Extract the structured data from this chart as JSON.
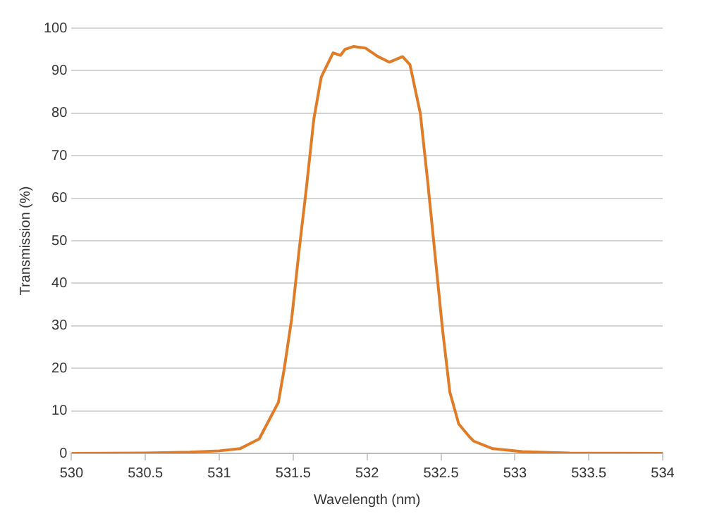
{
  "chart_data": {
    "type": "line",
    "xlabel": "Wavelength (nm)",
    "ylabel": "Transmission (%)",
    "xlim": [
      530,
      534
    ],
    "xticks": [
      530,
      530.5,
      531,
      531.5,
      532,
      532.5,
      533,
      533.5,
      534
    ],
    "ylim": [
      0,
      100
    ],
    "yticks": [
      0,
      10,
      20,
      30,
      40,
      50,
      60,
      70,
      80,
      90,
      100
    ],
    "grid": "y",
    "legend": false,
    "marker": "none",
    "line_style": "solid",
    "series": [
      {
        "color": "#e07b27",
        "x": [
          530,
          530.5,
          530.8,
          531,
          531.14,
          531.27,
          531.4,
          531.44,
          531.49,
          531.54,
          531.59,
          531.64,
          531.69,
          531.77,
          531.82,
          531.85,
          531.91,
          531.99,
          532.07,
          532.15,
          532.24,
          532.29,
          532.36,
          532.41,
          532.46,
          532.51,
          532.56,
          532.62,
          532.69,
          532.72,
          532.85,
          533.05,
          533.37,
          534
        ],
        "values": [
          0,
          0.1,
          0.3,
          0.6,
          1.1,
          3.4,
          12,
          20,
          31.7,
          47.7,
          62.6,
          78.7,
          88.5,
          94.2,
          93.6,
          95,
          95.7,
          95.3,
          93.4,
          92,
          93.3,
          91.4,
          80,
          64,
          46.6,
          29.3,
          14.4,
          6.9,
          4,
          2.9,
          1.1,
          0.4,
          0.1,
          0
        ]
      }
    ]
  }
}
